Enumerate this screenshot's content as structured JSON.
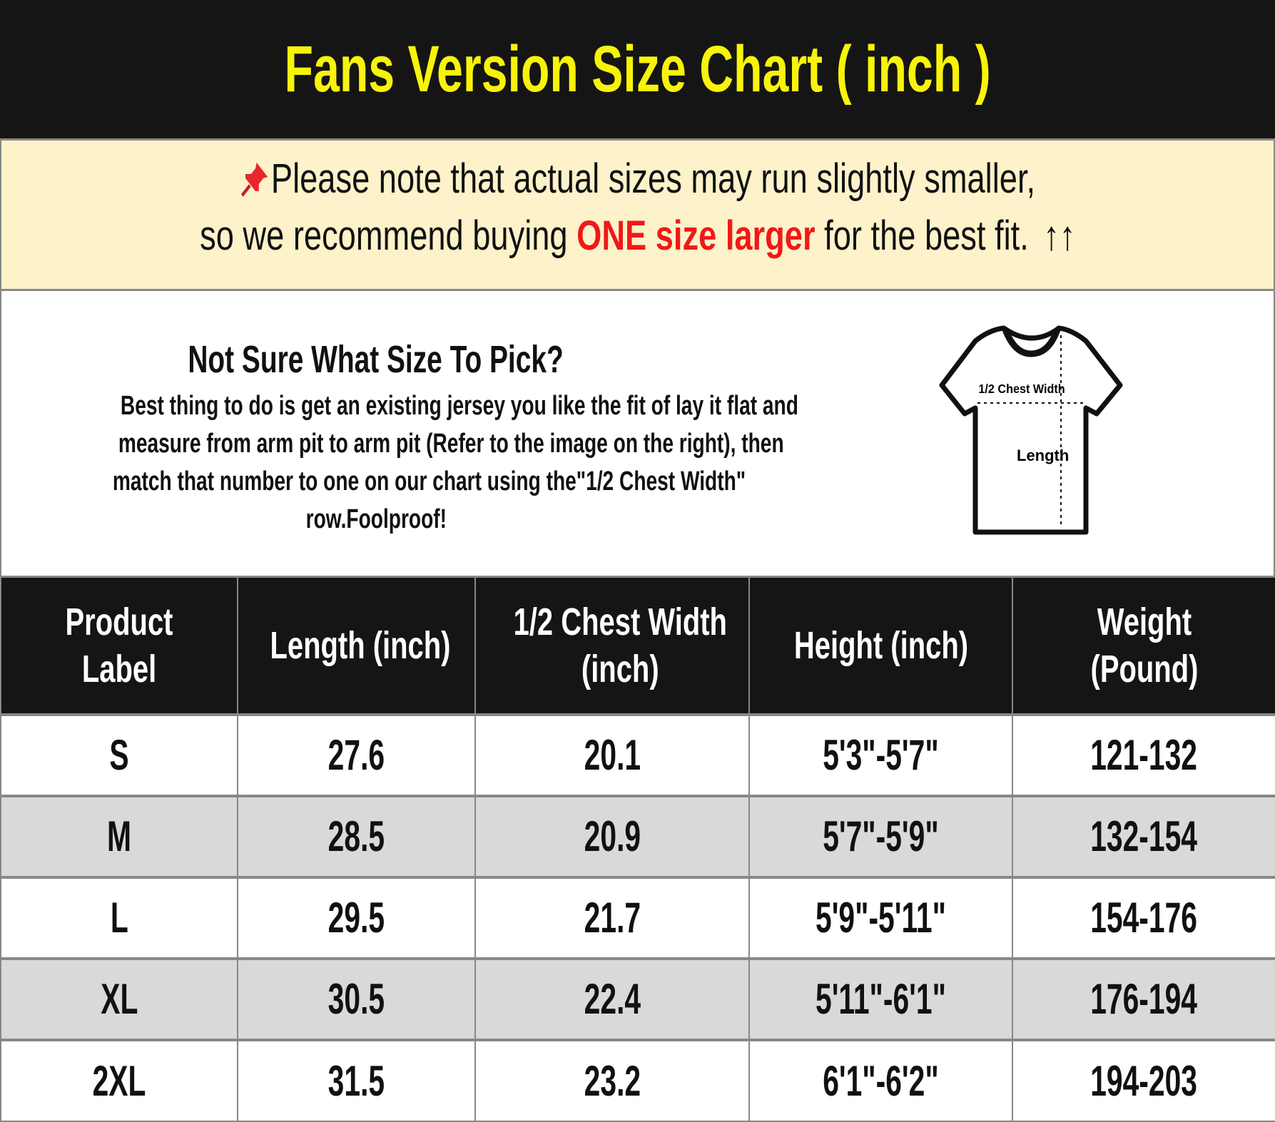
{
  "title": "Fans Version Size Chart ( inch )",
  "notice": {
    "icon": "pushpin-icon",
    "line1": "Please note that actual sizes may run slightly smaller,",
    "line2_pre": "so we recommend buying ",
    "line2_emph": "ONE size larger",
    "line2_post": " for the best fit.",
    "arrows": "↑↑",
    "emph_color": "#f01818"
  },
  "info": {
    "title": "Not Sure What Size To Pick?",
    "lines": [
      "Best thing to do is get an existing jersey you like the fit of lay it flat and",
      "measure from arm pit to arm pit (Refer to the image on the right), then",
      "match that number to one on our chart using the\"1/2 Chest Width\"",
      "row.Foolproof!"
    ],
    "diagram": {
      "chest_label": "1/2 Chest Width",
      "length_label": "Length"
    }
  },
  "table": {
    "headers": [
      [
        "Product",
        "Label"
      ],
      [
        "Length (inch)"
      ],
      [
        "1/2 Chest Width",
        "(inch)"
      ],
      [
        "Height (inch)"
      ],
      [
        "Weight",
        "(Pound)"
      ]
    ],
    "rows": [
      [
        "S",
        "27.6",
        "20.1",
        "5'3\"-5'7\"",
        "121-132"
      ],
      [
        "M",
        "28.5",
        "20.9",
        "5'7\"-5'9\"",
        "132-154"
      ],
      [
        "L",
        "29.5",
        "21.7",
        "5'9\"-5'11\"",
        "154-176"
      ],
      [
        "XL",
        "30.5",
        "22.4",
        "5'11\"-6'1\"",
        "176-194"
      ],
      [
        "2XL",
        "31.5",
        "23.2",
        "6'1\"-6'2\"",
        "194-203"
      ]
    ]
  }
}
